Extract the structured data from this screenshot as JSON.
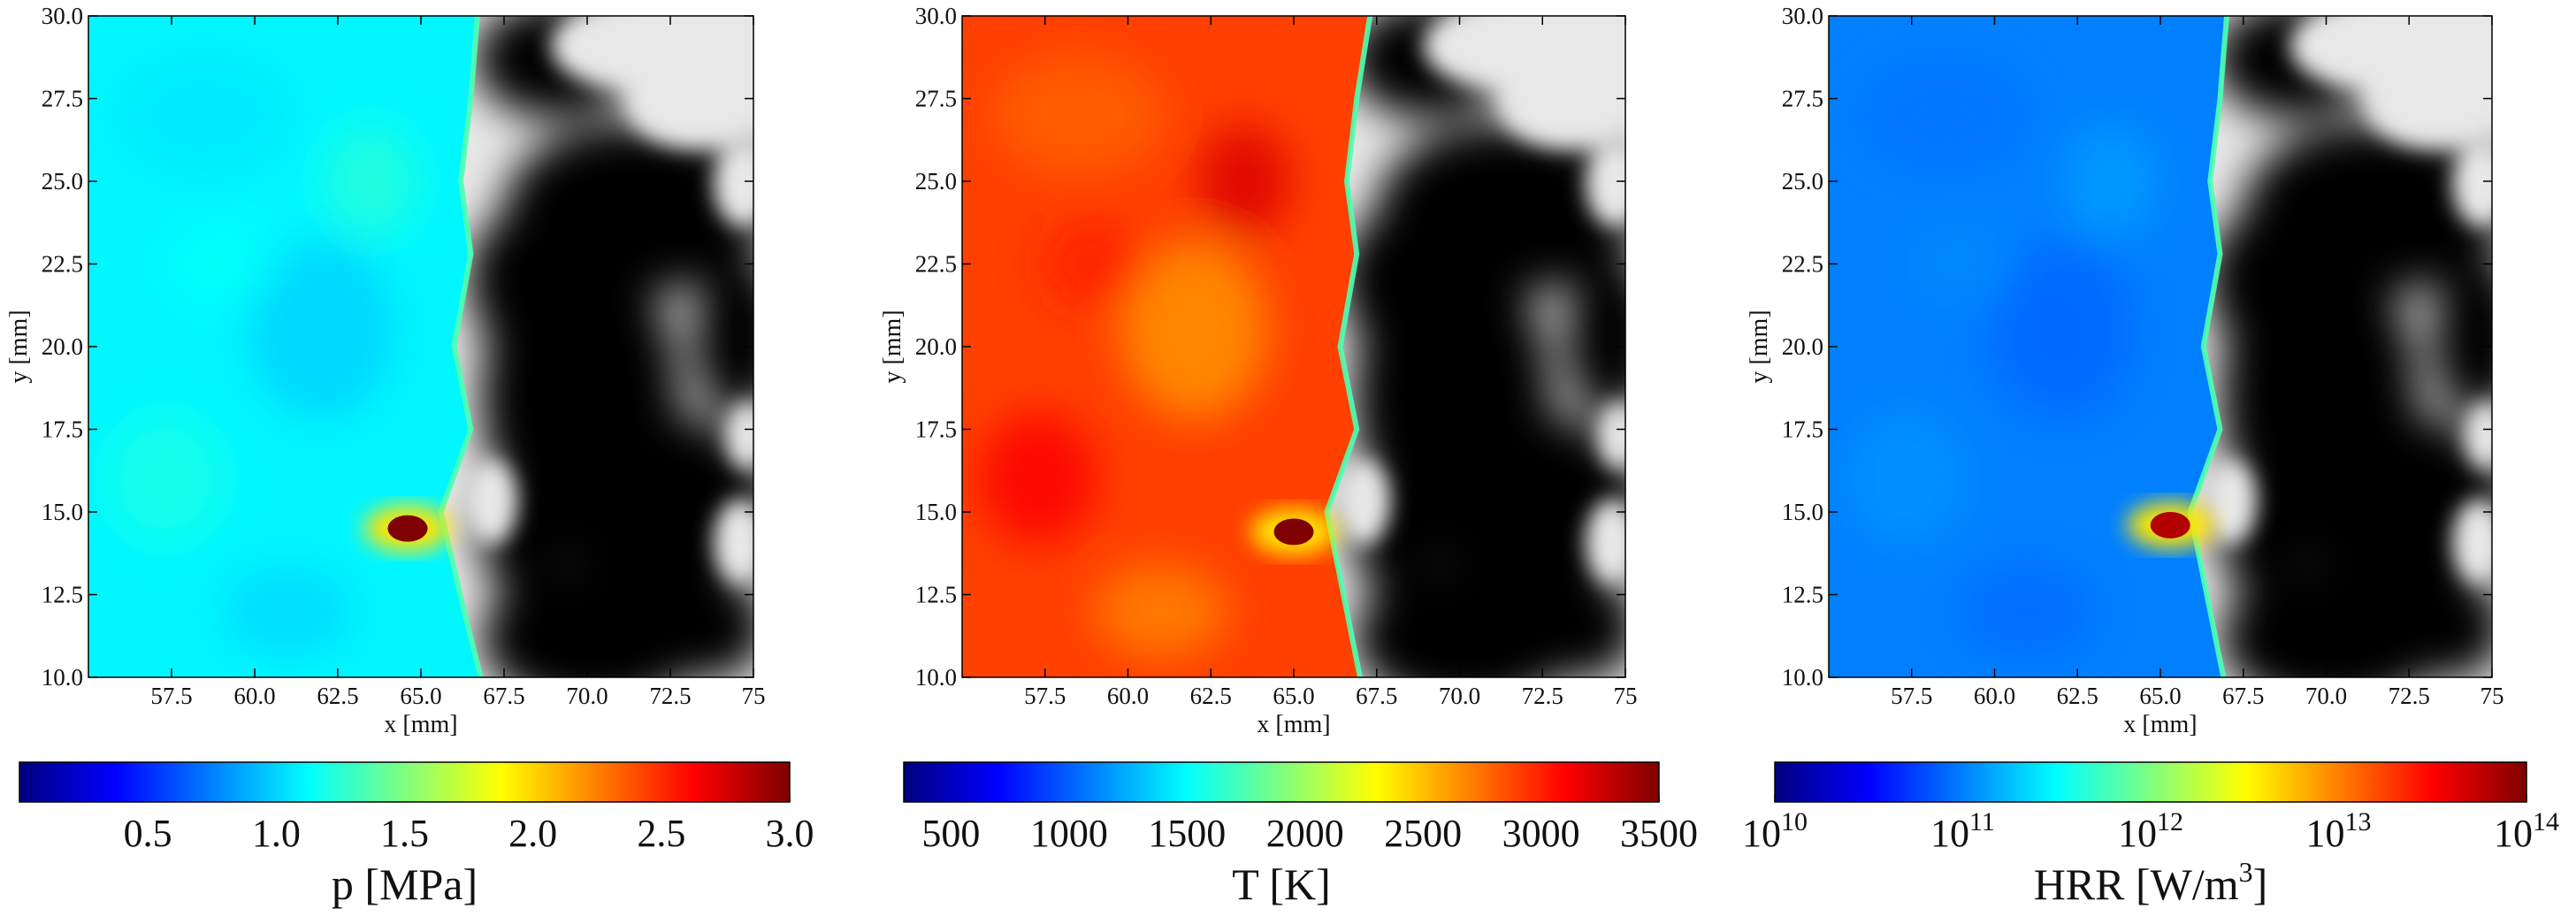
{
  "chart_data": [
    {
      "type": "heatmap",
      "field": "pressure",
      "xlabel": "x [mm]",
      "ylabel": "y [mm]",
      "xlim": [
        55.0,
        75.0
      ],
      "ylim": [
        10.0,
        30.0
      ],
      "xticks": [
        "57.5",
        "60.0",
        "62.5",
        "65.0",
        "67.5",
        "70.0",
        "72.5",
        "75"
      ],
      "xtick_values": [
        57.5,
        60.0,
        62.5,
        65.0,
        67.5,
        70.0,
        72.5,
        75.0
      ],
      "yticks": [
        "10.0",
        "12.5",
        "15.0",
        "17.5",
        "20.0",
        "22.5",
        "25.0",
        "27.5",
        "30.0"
      ],
      "ytick_values": [
        10.0,
        12.5,
        15.0,
        17.5,
        20.0,
        22.5,
        25.0,
        27.5,
        30.0
      ],
      "colorbar": {
        "label": "p [MPa]",
        "range": [
          0.0,
          3.0
        ],
        "scale": "linear",
        "colormap": "jet",
        "tick_values": [
          0.5,
          1.0,
          1.5,
          2.0,
          2.5,
          3.0
        ],
        "ticks": [
          "0.5",
          "1.0",
          "1.5",
          "2.0",
          "2.5",
          "3.0"
        ]
      },
      "background_level": 1.1,
      "front_x": [
        66.7,
        66.5,
        66.2,
        66.5,
        66.0,
        66.5,
        65.6,
        66.3,
        66.8
      ],
      "front_y": [
        30.0,
        27.5,
        25.0,
        22.8,
        20.0,
        17.5,
        15.0,
        12.0,
        10.0
      ],
      "hotspot": {
        "x": 64.6,
        "y": 14.5,
        "value": 3.0
      }
    },
    {
      "type": "heatmap",
      "field": "temperature",
      "xlabel": "x [mm]",
      "ylabel": "y [mm]",
      "xlim": [
        55.0,
        75.0
      ],
      "ylim": [
        10.0,
        30.0
      ],
      "xticks": [
        "57.5",
        "60.0",
        "62.5",
        "65.0",
        "67.5",
        "70.0",
        "72.5",
        "75"
      ],
      "xtick_values": [
        57.5,
        60.0,
        62.5,
        65.0,
        67.5,
        70.0,
        72.5,
        75.0
      ],
      "yticks": [
        "10.0",
        "12.5",
        "15.0",
        "17.5",
        "20.0",
        "22.5",
        "25.0",
        "27.5",
        "30.0"
      ],
      "ytick_values": [
        10.0,
        12.5,
        15.0,
        17.5,
        20.0,
        22.5,
        25.0,
        27.5,
        30.0
      ],
      "colorbar": {
        "label": "T [K]",
        "range": [
          300,
          3500
        ],
        "scale": "linear",
        "colormap": "jet",
        "tick_values": [
          500,
          1000,
          1500,
          2000,
          2500,
          3000,
          3500
        ],
        "ticks": [
          "500",
          "1000",
          "1500",
          "2000",
          "2500",
          "3000",
          "3500"
        ]
      },
      "background_level": 2900,
      "front_x": [
        67.3,
        66.9,
        66.6,
        66.9,
        66.4,
        66.9,
        66.0,
        66.6,
        67.0
      ],
      "front_y": [
        30.0,
        27.5,
        25.0,
        22.8,
        20.0,
        17.5,
        15.0,
        12.0,
        10.0
      ],
      "hotspot": {
        "x": 65.0,
        "y": 14.4,
        "value": 3500
      }
    },
    {
      "type": "heatmap",
      "field": "heat_release_rate",
      "xlabel": "x [mm]",
      "ylabel": "y [mm]",
      "xlim": [
        55.0,
        75.0
      ],
      "ylim": [
        10.0,
        30.0
      ],
      "xticks": [
        "57.5",
        "60.0",
        "62.5",
        "65.0",
        "67.5",
        "70.0",
        "72.5",
        "75"
      ],
      "xtick_values": [
        57.5,
        60.0,
        62.5,
        65.0,
        67.5,
        70.0,
        72.5,
        75.0
      ],
      "yticks": [
        "10.0",
        "12.5",
        "15.0",
        "17.5",
        "20.0",
        "22.5",
        "25.0",
        "27.5",
        "30.0"
      ],
      "ytick_values": [
        10.0,
        12.5,
        15.0,
        17.5,
        20.0,
        22.5,
        25.0,
        27.5,
        30.0
      ],
      "colorbar": {
        "label_main": "HRR [W/m",
        "label_sup": "3",
        "label_end": "]",
        "range": [
          10,
          14
        ],
        "scale": "log",
        "colormap": "jet",
        "tick_values": [
          10,
          11,
          12,
          13,
          14
        ],
        "ticks": [
          {
            "base": "10",
            "exp": "10"
          },
          {
            "base": "10",
            "exp": "11"
          },
          {
            "base": "10",
            "exp": "12"
          },
          {
            "base": "10",
            "exp": "13"
          },
          {
            "base": "10",
            "exp": "14"
          }
        ]
      },
      "background_level": 11.0,
      "front_x": [
        67.0,
        66.8,
        66.5,
        66.8,
        66.3,
        66.8,
        65.9,
        66.5,
        66.9
      ],
      "front_y": [
        30.0,
        27.5,
        25.0,
        22.8,
        20.0,
        17.5,
        15.0,
        12.0,
        10.0
      ],
      "hotspot": {
        "x": 65.3,
        "y": 14.6,
        "value": 13.8
      }
    }
  ],
  "colors": {
    "unburnt_light": "#e8e8e8",
    "unburnt_dark": "#060606",
    "jet": [
      "#00007f",
      "#0000ff",
      "#007fff",
      "#00ffff",
      "#7fff7f",
      "#ffff00",
      "#ff7f00",
      "#ff0000",
      "#7f0000"
    ]
  }
}
